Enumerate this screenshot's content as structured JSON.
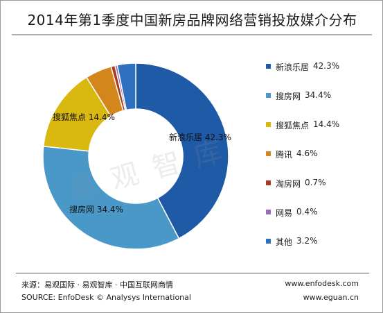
{
  "title": "2014年第1季度中国新房品牌网络营销投放媒介分布",
  "watermark": "易观智库",
  "chart_data": {
    "type": "pie",
    "donut": true,
    "legend_position": "right",
    "slices": [
      {
        "label": "新浪乐居",
        "value": 42.3,
        "display": "42.3%",
        "color": "#1f5aa6",
        "show_label": true
      },
      {
        "label": "搜房网",
        "value": 34.4,
        "display": "34.4%",
        "color": "#4a98c8",
        "show_label": true
      },
      {
        "label": "搜狐焦点",
        "value": 14.4,
        "display": "14.4%",
        "color": "#d9b80f",
        "show_label": true
      },
      {
        "label": "腾讯",
        "value": 4.6,
        "display": "4.6%",
        "color": "#d3861c",
        "show_label": false
      },
      {
        "label": "淘房网",
        "value": 0.7,
        "display": "0.7%",
        "color": "#a83a1e",
        "show_label": false
      },
      {
        "label": "网易",
        "value": 0.4,
        "display": "0.4%",
        "color": "#9b6bbf",
        "show_label": false
      },
      {
        "label": "其他",
        "value": 3.2,
        "display": "3.2%",
        "color": "#2e6fc0",
        "show_label": false
      }
    ]
  },
  "footer": {
    "source_cn": "来源：易观国际 · 易观智库 · 中国互联网商情",
    "source_en": "SOURCE: EnfoDesk © Analysys International",
    "url1": "www.enfodesk.com",
    "url2": "www.eguan.cn"
  }
}
